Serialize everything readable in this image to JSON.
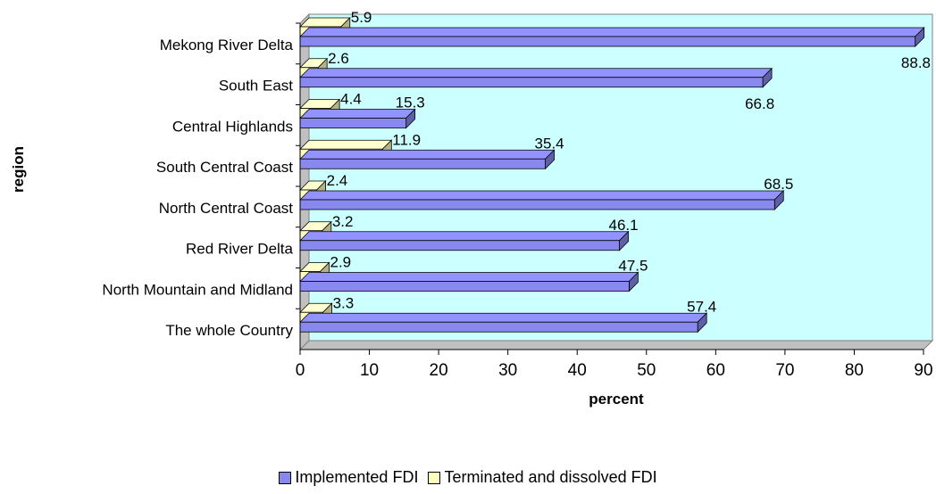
{
  "chart_data": {
    "type": "bar",
    "orientation": "horizontal",
    "categories": [
      "Mekong River Delta",
      "South East",
      "Central Highlands",
      "South Central Coast",
      "North Central Coast",
      "Red River Delta",
      "North Mountain and Midland",
      "The whole Country"
    ],
    "series": [
      {
        "name": "Implemented FDI",
        "color": "#8888ee",
        "values": [
          88.8,
          66.8,
          15.3,
          35.4,
          68.5,
          46.1,
          47.5,
          57.4
        ]
      },
      {
        "name": "Terminated and dissolved FDI",
        "color": "#ffffc0",
        "values": [
          5.9,
          2.6,
          4.4,
          11.9,
          2.4,
          3.2,
          2.9,
          3.3
        ]
      }
    ],
    "xlabel": "percent",
    "ylabel": "region",
    "xlim": [
      0,
      90
    ],
    "xticks": [
      0,
      10,
      20,
      30,
      40,
      50,
      60,
      70,
      80,
      90
    ],
    "grid": false,
    "legend": "bottom",
    "plot_background": "#ccffff"
  }
}
